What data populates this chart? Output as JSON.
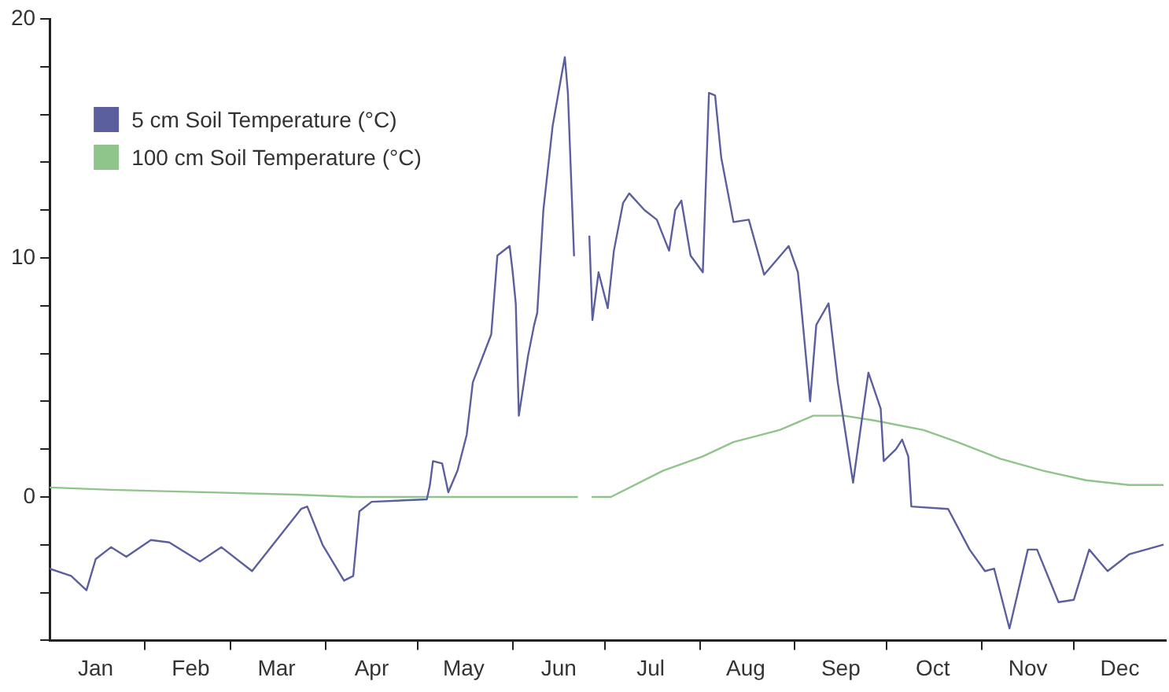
{
  "chart_data": {
    "type": "line",
    "legend": "top left",
    "grid": false,
    "marker": "none",
    "line_style": "solid",
    "xlim": [
      "--01-01",
      "--12-31"
    ],
    "ylim": [
      -6,
      20
    ],
    "xticks": [
      {
        "value": "--01-16",
        "label": "Jan"
      },
      {
        "value": "--02-01",
        "label": null
      },
      {
        "value": "--02-16",
        "label": "Feb"
      },
      {
        "value": "--03-01",
        "label": null
      },
      {
        "value": "--03-16",
        "label": "Mar"
      },
      {
        "value": "--04-01",
        "label": null
      },
      {
        "value": "--04-16",
        "label": "Apr"
      },
      {
        "value": "--05-01",
        "label": null
      },
      {
        "value": "--05-16",
        "label": "May"
      },
      {
        "value": "--06-01",
        "label": null
      },
      {
        "value": "--06-16",
        "label": "Jun"
      },
      {
        "value": "--07-01",
        "label": null
      },
      {
        "value": "--07-16",
        "label": "Jul"
      },
      {
        "value": "--08-01",
        "label": null
      },
      {
        "value": "--08-16",
        "label": "Aug"
      },
      {
        "value": "--09-01",
        "label": null
      },
      {
        "value": "--09-16",
        "label": "Sep"
      },
      {
        "value": "--10-01",
        "label": null
      },
      {
        "value": "--10-16",
        "label": "Oct"
      },
      {
        "value": "--11-01",
        "label": null
      },
      {
        "value": "--11-16",
        "label": "Nov"
      },
      {
        "value": "--12-01",
        "label": null
      },
      {
        "value": "--12-16",
        "label": "Dec"
      }
    ],
    "yticks": [
      {
        "value": -6,
        "label": null
      },
      {
        "value": -4,
        "label": null
      },
      {
        "value": -2,
        "label": null
      },
      0,
      {
        "value": 2,
        "label": null
      },
      {
        "value": 4,
        "label": null
      },
      {
        "value": 6,
        "label": null
      },
      {
        "value": 8,
        "label": null
      },
      10,
      {
        "value": 12,
        "label": null
      },
      {
        "value": 14,
        "label": null
      },
      {
        "value": 16,
        "label": null
      },
      {
        "value": 18,
        "label": null
      },
      20
    ],
    "series": [
      {
        "name": "5 cm Soil Temperature (°C)",
        "color": "#5b5f9e",
        "x": [
          "--01-01",
          "--01-08",
          "--01-13",
          "--01-16",
          "--01-21",
          "--01-26",
          "--02-03",
          "--02-09",
          "--02-19",
          "--02-26",
          "--03-08",
          "--03-16",
          "--03-24",
          "--03-26",
          "--03-31",
          "--04-07",
          "--04-10",
          "--04-12",
          "--04-16",
          "--05-04",
          "--05-05",
          "--05-06",
          "--05-09",
          "--05-11",
          "--05-14",
          "--05-17",
          "--05-19",
          "--05-25",
          "--05-27",
          "--05-31",
          "--06-01",
          "--06-02",
          "--06-03",
          "--06-06",
          "--06-08",
          "--06-09",
          "--06-11",
          "--06-14",
          "--06-17",
          "--06-18",
          "--06-19",
          "--06-21",
          "--06-24",
          "--06-26",
          "--06-27",
          "--06-29",
          "--07-02",
          "--07-04",
          "--07-07",
          "--07-09",
          "--07-14",
          "--07-18",
          "--07-22",
          "--07-24",
          "--07-26",
          "--07-29",
          "--08-02",
          "--08-04",
          "--08-06",
          "--08-08",
          "--08-12",
          "--08-17",
          "--08-22",
          "--08-30",
          "--09-02",
          "--09-03",
          "--09-06",
          "--09-08",
          "--09-12",
          "--09-15",
          "--09-20",
          "--09-25",
          "--09-29",
          "--09-30",
          "--10-04",
          "--10-06",
          "--10-08",
          "--10-09",
          "--10-21",
          "--10-28",
          "--11-02",
          "--11-05",
          "--11-10",
          "--11-16",
          "--11-19",
          "--11-26",
          "--12-01",
          "--12-06",
          "--12-12",
          "--12-19",
          "--12-30"
        ],
        "values": [
          -3.0,
          -3.3,
          -3.9,
          -2.6,
          -2.1,
          -2.5,
          -1.8,
          -1.9,
          -2.7,
          -2.1,
          -3.1,
          -1.8,
          -0.5,
          -0.4,
          -2.0,
          -3.5,
          -3.3,
          -0.6,
          -0.2,
          -0.1,
          0.5,
          1.5,
          1.4,
          0.2,
          1.1,
          2.6,
          4.8,
          6.8,
          10.1,
          10.5,
          9.4,
          8.1,
          3.4,
          5.9,
          7.2,
          7.7,
          12.0,
          15.5,
          17.7,
          18.4,
          16.9,
          10.1,
          null,
          10.9,
          7.4,
          9.4,
          7.9,
          10.3,
          12.3,
          12.7,
          12.0,
          11.6,
          10.3,
          12.0,
          12.4,
          10.1,
          9.4,
          16.9,
          16.8,
          14.2,
          11.5,
          11.6,
          9.3,
          10.5,
          9.4,
          8.1,
          4.0,
          7.2,
          8.1,
          4.8,
          0.6,
          5.2,
          3.7,
          1.5,
          2.0,
          2.4,
          1.7,
          -0.4,
          -0.5,
          -2.2,
          -3.1,
          -3.0,
          -5.5,
          -2.2,
          -2.2,
          -4.4,
          -4.3,
          -2.2,
          -3.1,
          -2.4,
          -2.0
        ]
      },
      {
        "name": "100 cm Soil Temperature (°C)",
        "color": "#8fc48a",
        "x": [
          "--01-01",
          "--01-21",
          "--02-20",
          "--03-22",
          "--04-11",
          "--05-21",
          "--06-22",
          "--06-24",
          "--06-27",
          "--07-03",
          "--07-20",
          "--08-02",
          "--08-12",
          "--08-27",
          "--09-07",
          "--09-17",
          "--09-27",
          "--10-13",
          "--10-24",
          "--11-07",
          "--11-21",
          "--12-05",
          "--12-19",
          "--12-30"
        ],
        "values": [
          0.4,
          0.3,
          0.2,
          0.1,
          0.0,
          0.0,
          0.0,
          null,
          0.0,
          0.0,
          1.1,
          1.7,
          2.3,
          2.8,
          3.4,
          3.4,
          3.2,
          2.8,
          2.3,
          1.6,
          1.1,
          0.7,
          0.5,
          0.5
        ]
      }
    ]
  }
}
